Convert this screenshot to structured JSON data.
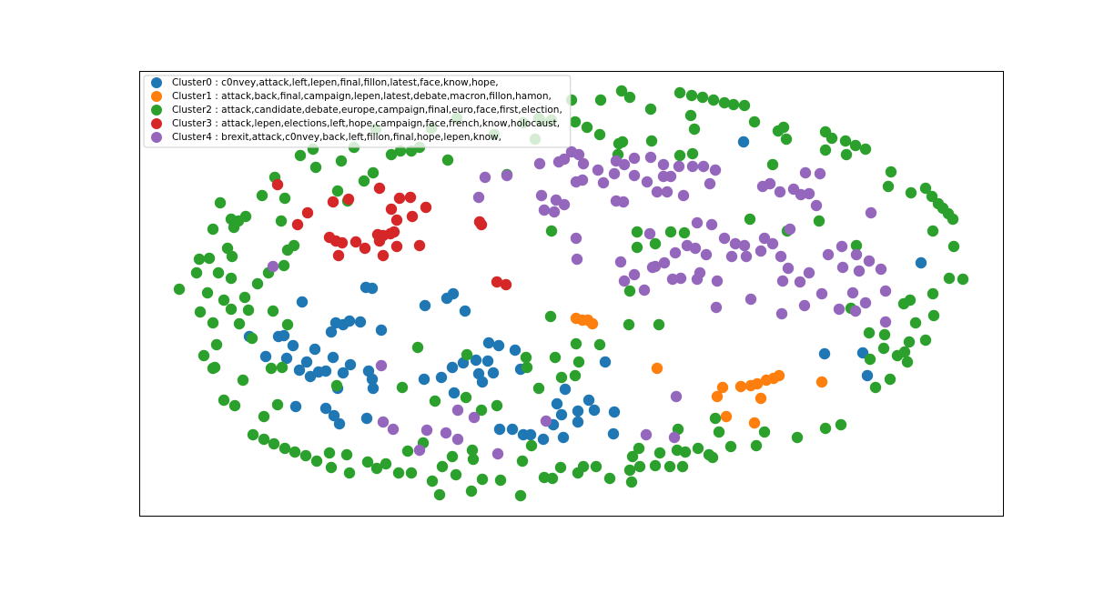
{
  "chart_data": {
    "type": "scatter",
    "xlim": [
      153,
      1102
    ],
    "ylim": [
      567,
      78
    ],
    "legend": "upper left",
    "series": [
      {
        "name": "Cluster0 : c0nvey,attack,left,lepen,final,fillon,latest,face,know,hope,",
        "color": "#1f77b4",
        "x": [
          817,
          1012,
          332,
          402,
          409,
          467,
          491,
          498,
          511,
          369,
          377,
          384,
          396,
          419,
          364,
          306,
          312,
          274,
          322,
          346,
          292,
          315,
          337,
          366,
          385,
          329,
          341,
          350,
          358,
          377,
          405,
          409,
          371,
          410,
          466,
          485,
          497,
          509,
          523,
          537,
          548,
          566,
          536,
          526,
          542,
          499,
          530,
          572,
          325,
          358,
          367,
          373,
          403,
          549,
          563,
          575,
          583,
          597,
          619,
          608,
          617,
          612,
          635,
          647,
          653,
          675,
          635,
          674,
          621,
          665,
          906,
          948,
          953
        ],
        "values": [
          156,
          289,
          332,
          316,
          317,
          336,
          328,
          323,
          342,
          355,
          357,
          353,
          354,
          363,
          365,
          370,
          369,
          370,
          380,
          384,
          392,
          394,
          398,
          393,
          401,
          407,
          414,
          409,
          408,
          410,
          408,
          417,
          427,
          427,
          417,
          415,
          404,
          399,
          396,
          377,
          380,
          385,
          397,
          411,
          410,
          432,
          420,
          406,
          447,
          449,
          457,
          466,
          460,
          472,
          472,
          478,
          478,
          483,
          481,
          467,
          456,
          444,
          452,
          440,
          451,
          453,
          464,
          477,
          428,
          398,
          389,
          388,
          413
        ]
      },
      {
        "name": "Cluster1 : attack,back,final,campaign,lepen,latest,debate,macron,fillon,hamon,",
        "color": "#ff7f0e",
        "x": [
          633,
          640,
          646,
          651,
          722,
          788,
          794,
          814,
          825,
          832,
          842,
          850,
          856,
          836,
          798,
          829,
          903
        ],
        "values": [
          350,
          352,
          352,
          356,
          405,
          436,
          426,
          425,
          424,
          422,
          418,
          416,
          413,
          438,
          458,
          465,
          420
        ]
      },
      {
        "name": "Cluster2 : attack,candidate,debate,europe,campaign,final,euro,face,first,election,",
        "color": "#2ca02c",
        "x": [
          683,
          692,
          747,
          760,
          772,
          784,
          796,
          806,
          818,
          715,
          759,
          763,
          829,
          855,
          861,
          864,
          628,
          660,
          592,
          606,
          632,
          645,
          659,
          680,
          684,
          679,
          716,
          747,
          761,
          849,
          907,
          914,
          929,
          940,
          951,
          907,
          930,
          979,
          976,
          1001,
          1017,
          1024,
          1031,
          1036,
          1042,
          1047,
          1025,
          1048,
          1043,
          1058,
          1025,
          993,
          1000,
          1006,
          1026,
          1017,
          999,
          994,
          997,
          986,
          971,
          956,
          978,
          962,
          941,
          935,
          955,
          972,
          492,
          557,
          440,
          452,
          461,
          474,
          502,
          543,
          575,
          588,
          594,
          413,
          389,
          375,
          347,
          330,
          344,
          302,
          288,
          313,
          242,
          254,
          262,
          270,
          234,
          257,
          309,
          323,
          316,
          250,
          230,
          219,
          255,
          240,
          216,
          254,
          283,
          295,
          312,
          269,
          228,
          246,
          220,
          234,
          254,
          273,
          263,
          300,
          316,
          277,
          238,
          224,
          236,
          267,
          298,
          310,
          370,
          197,
          246,
          258,
          305,
          290,
          278,
          290,
          301,
          313,
          324,
          336,
          348,
          362,
          381,
          404,
          384,
          364,
          414,
          438,
          452,
          424,
          448,
          465,
          497,
          519,
          475,
          501,
          530,
          550,
          574,
          572,
          598,
          483,
          518,
          616,
          635,
          641,
          655,
          670,
          692,
          694,
          703,
          720,
          736,
          750,
          725,
          744,
          753,
          767,
          779,
          783,
          803,
          831,
          840,
          876,
          907,
          924,
          786,
          790,
          745,
          695,
          702,
          459,
          442,
          478,
          513,
          512,
          529,
          546,
          578,
          610,
          579,
          592,
          617,
          632,
          636,
          633,
          659,
          605,
          691,
          724,
          606,
          700,
          700,
          720,
          737,
          752,
          824,
          865,
          900,
          692,
          234,
          371,
          382,
          410,
          400,
          486,
          520,
          430,
          584,
          607
        ],
        "values": [
          100,
          107,
          102,
          105,
          107,
          110,
          113,
          115,
          116,
          120,
          127,
          142,
          134,
          144,
          140,
          153,
          110,
          110,
          130,
          132,
          134,
          140,
          148,
          158,
          156,
          170,
          155,
          171,
          169,
          181,
          145,
          152,
          155,
          160,
          164,
          165,
          170,
          189,
          205,
          212,
          207,
          216,
          224,
          229,
          235,
          241,
          254,
          271,
          306,
          307,
          323,
          334,
          330,
          355,
          347,
          374,
          376,
          387,
          398,
          391,
          383,
          395,
          417,
          426,
          270,
          339,
          366,
          368,
          176,
          192,
          166,
          166,
          162,
          141,
          130,
          148,
          135,
          153,
          133,
          142,
          162,
          177,
          184,
          171,
          164,
          195,
          215,
          218,
          223,
          241,
          243,
          238,
          252,
          250,
          243,
          270,
          275,
          273,
          284,
          285,
          282,
          300,
          300,
          306,
          312,
          300,
          292,
          327,
          322,
          330,
          343,
          355,
          340,
          341,
          356,
          342,
          357,
          372,
          379,
          391,
          404,
          418,
          405,
          404,
          424,
          318,
          440,
          446,
          445,
          458,
          478,
          483,
          488,
          493,
          497,
          501,
          507,
          498,
          500,
          508,
          520,
          514,
          515,
          520,
          520,
          510,
          496,
          487,
          502,
          495,
          529,
          522,
          527,
          528,
          507,
          545,
          525,
          544,
          540,
          514,
          520,
          513,
          513,
          526,
          517,
          530,
          513,
          512,
          513,
          513,
          498,
          495,
          497,
          493,
          500,
          503,
          491,
          490,
          475,
          481,
          471,
          467,
          460,
          475,
          472,
          502,
          493,
          382,
          426,
          441,
          390,
          437,
          451,
          446,
          393,
          393,
          404,
          427,
          415,
          413,
          398,
          378,
          379,
          348,
          357,
          357,
          254,
          255,
          272,
          268,
          255,
          256,
          241,
          254,
          243,
          320,
          405,
          210,
          221,
          190,
          199,
          513,
          505,
          170,
          490,
          526
        ]
      },
      {
        "name": "Cluster3 : attack,lepen,elections,left,hope,campaign,face,french,know,holocaust,",
        "color": "#d62728",
        "x": [
          305,
          366,
          383,
          417,
          439,
          451,
          468,
          338,
          327,
          430,
          436,
          453,
          527,
          529,
          362,
          369,
          376,
          372,
          391,
          401,
          415,
          421,
          429,
          433,
          417,
          436,
          461,
          421,
          546,
          556
        ],
        "values": [
          203,
          222,
          219,
          207,
          218,
          217,
          228,
          234,
          247,
          230,
          242,
          238,
          244,
          247,
          261,
          265,
          267,
          281,
          266,
          273,
          258,
          259,
          257,
          255,
          265,
          271,
          270,
          281,
          310,
          313
        ]
      },
      {
        "name": "Cluster4 : brexit,attack,c0nvey,back,left,fillon,final,hope,lepen,know,",
        "color": "#9467bd",
        "x": [
          533,
          557,
          593,
          614,
          620,
          628,
          636,
          641,
          657,
          677,
          686,
          697,
          715,
          729,
          746,
          761,
          773,
          786,
          633,
          640,
          663,
          675,
          697,
          711,
          729,
          737,
          722,
          733,
          751,
          780,
          595,
          611,
          620,
          598,
          609,
          677,
          685,
          526,
          633,
          634,
          885,
          901,
          838,
          846,
          857,
          872,
          880,
          889,
          897,
          957,
          766,
          782,
          796,
          808,
          818,
          840,
          849,
          868,
          714,
          755,
          764,
          776,
          742,
          730,
          720,
          697,
          717,
          748,
          769,
          804,
          820,
          836,
          858,
          866,
          889,
          910,
          925,
          941,
          955,
          968,
          926,
          944,
          682,
          686,
          708,
          739,
          766,
          788,
          860,
          879,
          903,
          937,
          951,
          973,
          973,
          884,
          859,
          922,
          940,
          825,
          787,
          300,
          419,
          421,
          432,
          469,
          490,
          503,
          521,
          503,
          600,
          710,
          743,
          741,
          547,
          461
        ],
        "values": [
          195,
          193,
          180,
          178,
          175,
          167,
          170,
          180,
          187,
          177,
          181,
          174,
          173,
          181,
          183,
          183,
          183,
          187,
          200,
          198,
          201,
          191,
          193,
          200,
          194,
          194,
          211,
          211,
          215,
          202,
          215,
          220,
          225,
          231,
          233,
          221,
          222,
          217,
          262,
          285,
          190,
          191,
          205,
          202,
          211,
          208,
          214,
          213,
          226,
          234,
          245,
          247,
          262,
          268,
          270,
          262,
          268,
          252,
          257,
          270,
          273,
          280,
          278,
          289,
          293,
          302,
          294,
          306,
          300,
          282,
          282,
          276,
          282,
          295,
          300,
          280,
          271,
          280,
          287,
          296,
          294,
          298,
          288,
          309,
          319,
          307,
          307,
          309,
          309,
          310,
          323,
          322,
          333,
          320,
          354,
          336,
          345,
          340,
          342,
          329,
          338,
          293,
          402,
          464,
          472,
          473,
          476,
          483,
          459,
          451,
          463,
          478,
          436,
          481,
          499,
          495
        ]
      }
    ]
  }
}
